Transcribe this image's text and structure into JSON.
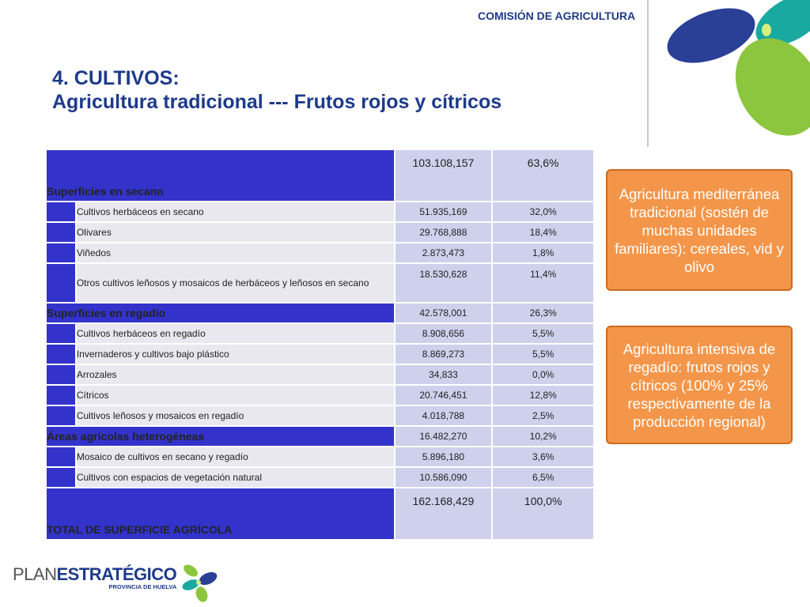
{
  "header": {
    "commission": "COMISIÓN DE AGRICULTURA"
  },
  "title": {
    "line1": "4. CULTIVOS:",
    "line2": "Agricultura tradicional  ---  Frutos rojos y cítricos"
  },
  "table": {
    "secano": {
      "label": "Superficies en secano",
      "value": "103.108,157",
      "pct": "63,6%"
    },
    "secano_items": [
      {
        "label": "Cultivos herbáceos en secano",
        "value": "51.935,169",
        "pct": "32,0%"
      },
      {
        "label": "Olivares",
        "value": "29.768,888",
        "pct": "18,4%"
      },
      {
        "label": "Viñedos",
        "value": "2.873,473",
        "pct": "1,8%"
      },
      {
        "label": "Otros cultivos leñosos y mosaicos de herbáceos y leñosos en secano",
        "value": "18.530,628",
        "pct": "11,4%"
      }
    ],
    "regadio": {
      "label": "Superficies en regadío",
      "value": "42.578,001",
      "pct": "26,3%"
    },
    "regadio_items": [
      {
        "label": "Cultivos herbáceos en regadío",
        "value": "8.908,656",
        "pct": "5,5%"
      },
      {
        "label": "Invernaderos y cultivos bajo plástico",
        "value": "8.869,273",
        "pct": "5,5%"
      },
      {
        "label": "Arrozales",
        "value": "34,833",
        "pct": "0,0%"
      },
      {
        "label": "Cítricos",
        "value": "20.746,451",
        "pct": "12,8%"
      },
      {
        "label": "Cultivos leñosos y mosaicos en regadío",
        "value": "4.018,788",
        "pct": "2,5%"
      }
    ],
    "heterogeneas": {
      "label": "Áreas agrícolas heterogéneas",
      "value": "16.482,270",
      "pct": "10,2%"
    },
    "heterogeneas_items": [
      {
        "label": "Mosaico de cultivos en secano y regadío",
        "value": "5.896,180",
        "pct": "3,6%"
      },
      {
        "label": "Cultivos con espacios de vegetación natural",
        "value": "10.586,090",
        "pct": "6,5%"
      }
    ],
    "total": {
      "label": "TOTAL DE SUPERFICIE AGRÍCOLA",
      "value": "162.168,429",
      "pct": "100,0%"
    }
  },
  "callouts": {
    "first": "Agricultura mediterránea tradicional (sostén de muchas unidades familiares): cereales, vid y olivo",
    "second": "Agricultura intensiva de regadío: frutos rojos y cítricos (100% y 25% respectivamente de la producción regional)"
  },
  "footer": {
    "plan": "PLAN",
    "estrategico": "ESTRATÉGICO",
    "provincia": "PROVINCIA DE HUELVA"
  },
  "colors": {
    "brand_blue": "#1e3a8a",
    "table_blue": "#3333cc",
    "callout_orange": "#f4964a",
    "logo_green": "#8cc63f",
    "logo_teal": "#1aa9a0",
    "logo_navy": "#2a3f96"
  }
}
